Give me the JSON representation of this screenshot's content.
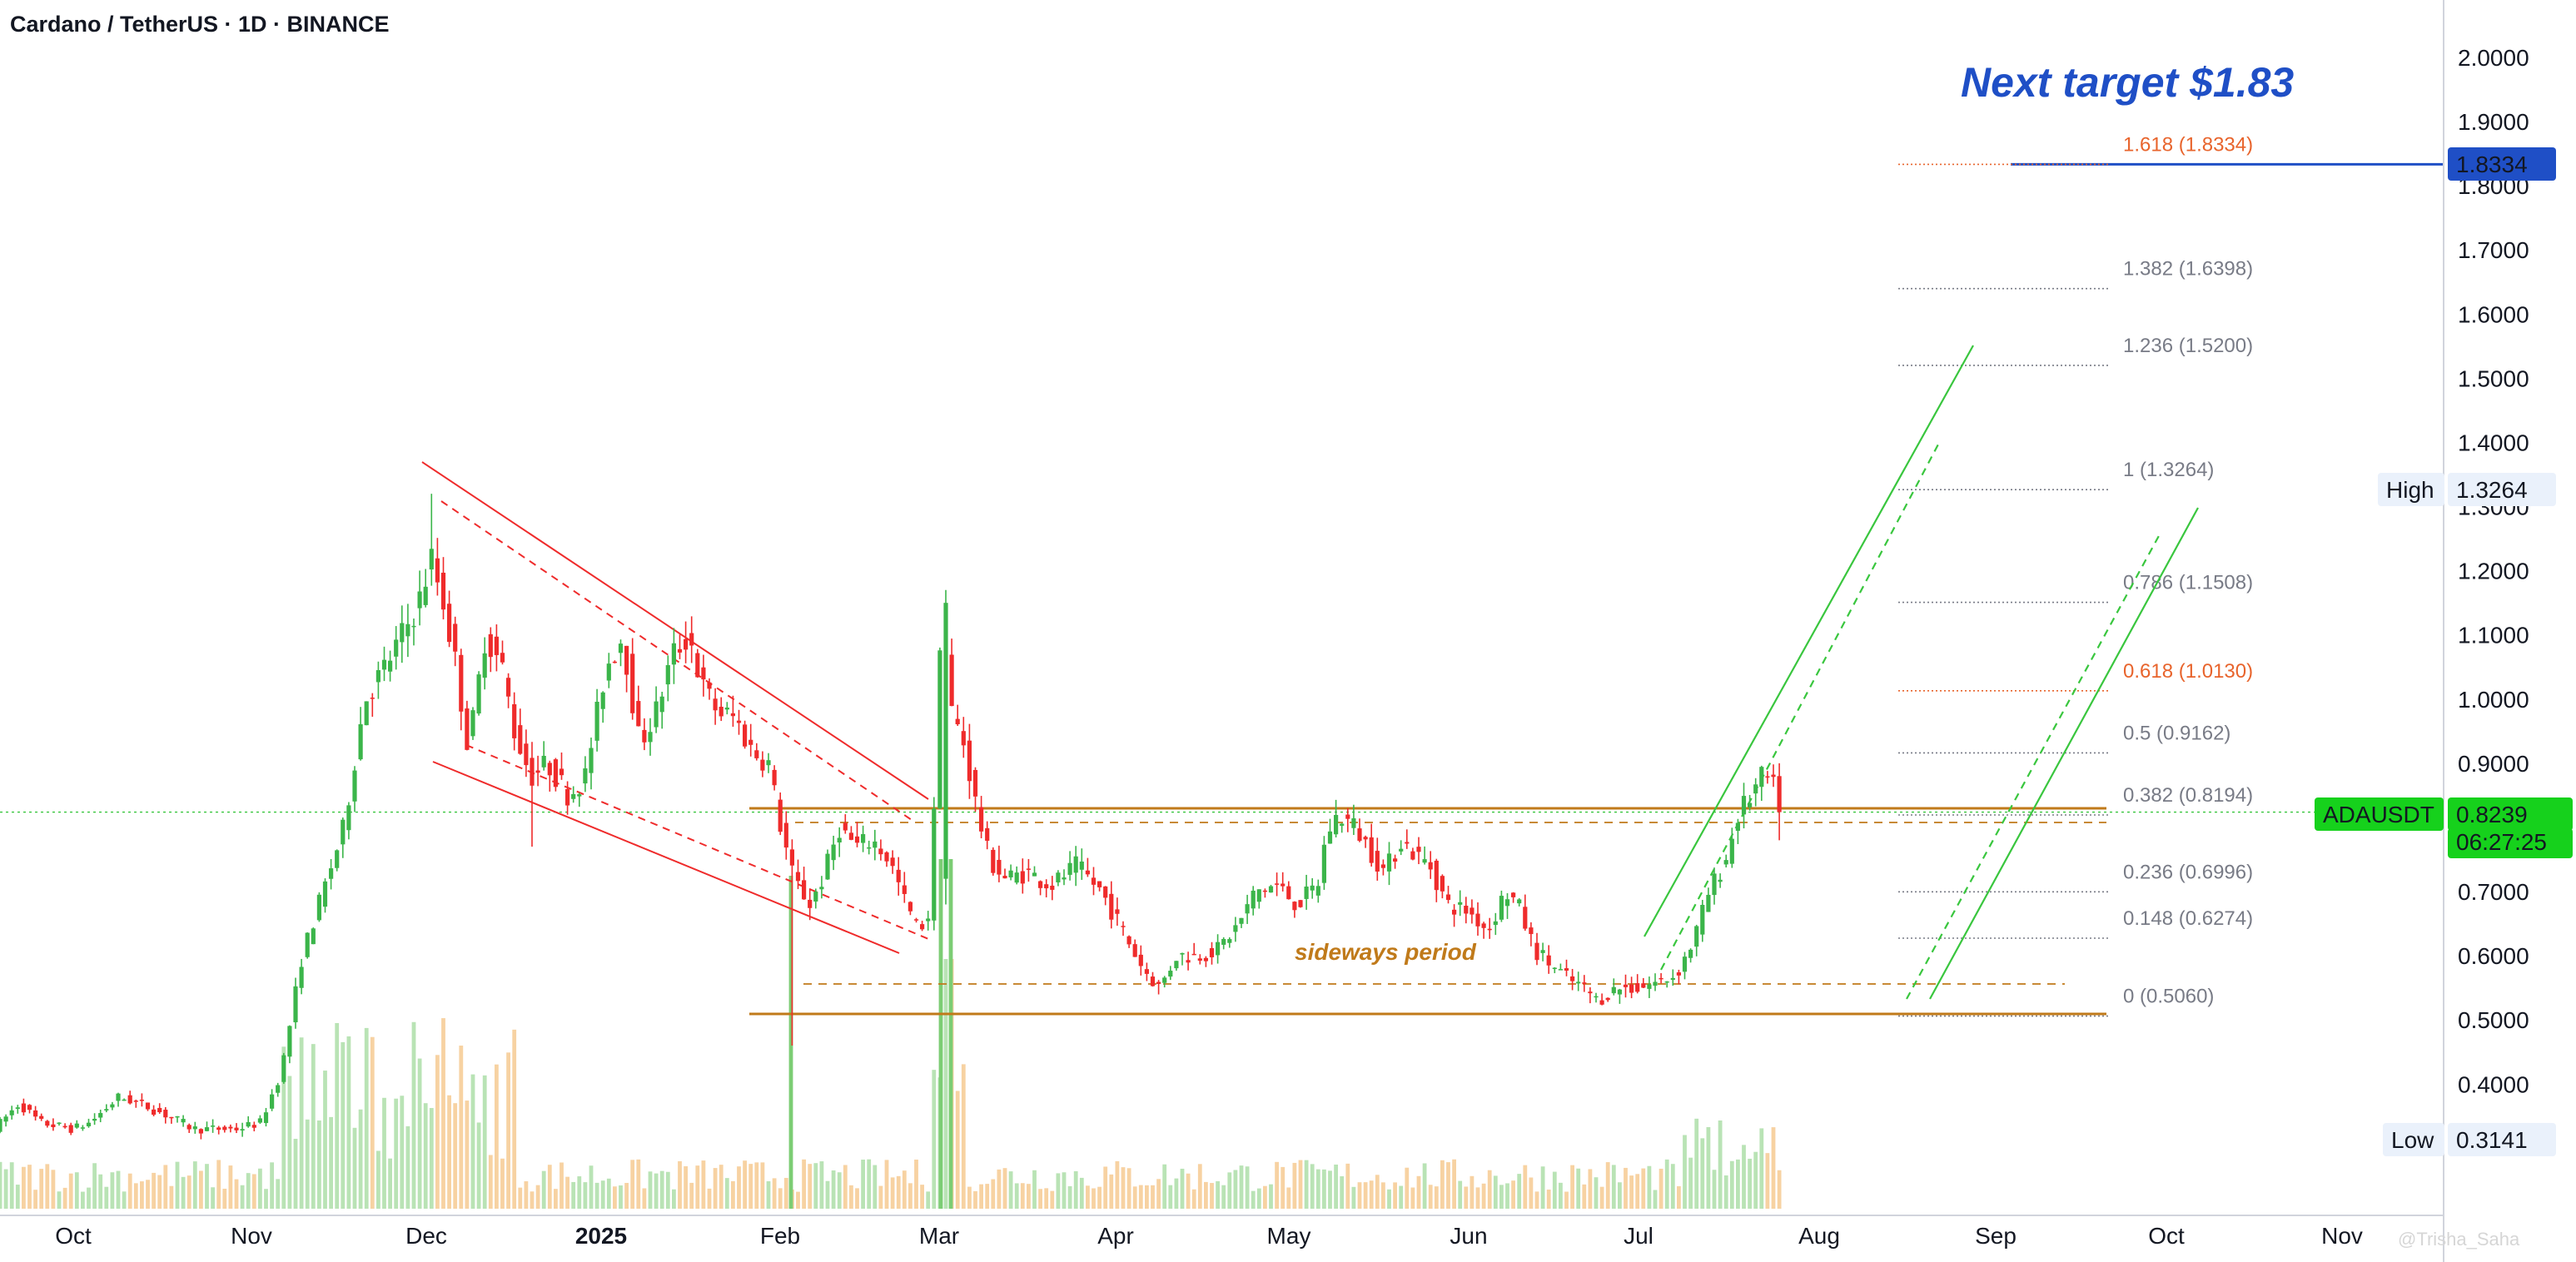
{
  "header": {
    "title": "Cardano / TetherUS · 1D · BINANCE"
  },
  "annotations": {
    "target_text": "Next target $1.83",
    "sideways_text": "sideways period",
    "watermark": "@Trisha_Saha"
  },
  "price_scale": {
    "ticks": [
      "2.0000",
      "1.9000",
      "1.8000",
      "1.7000",
      "1.6000",
      "1.5000",
      "1.4000",
      "1.3000",
      "1.2000",
      "1.1000",
      "1.0000",
      "0.9000",
      "0.7000",
      "0.6000",
      "0.5000",
      "0.4000"
    ],
    "target_badge": "1.8334",
    "high_label": "High",
    "high_value": "1.3264",
    "low_label": "Low",
    "low_value": "0.3141",
    "symbol_label": "ADAUSDT",
    "last_price": "0.8239",
    "countdown": "06:27:25"
  },
  "time_axis": [
    "Oct",
    "Nov",
    "Dec",
    "2025",
    "Feb",
    "Mar",
    "Apr",
    "May",
    "Jun",
    "Jul",
    "Aug",
    "Sep",
    "Oct",
    "Nov"
  ],
  "fib_levels": [
    {
      "label": "1.618 (1.8334)",
      "value": 1.8334,
      "color": "#e8642c"
    },
    {
      "label": "1.382 (1.6398)",
      "value": 1.6398,
      "color": "#787b86"
    },
    {
      "label": "1.236 (1.5200)",
      "value": 1.52,
      "color": "#787b86"
    },
    {
      "label": "1 (1.3264)",
      "value": 1.3264,
      "color": "#787b86"
    },
    {
      "label": "0.786 (1.1508)",
      "value": 1.1508,
      "color": "#787b86"
    },
    {
      "label": "0.618 (1.0130)",
      "value": 1.013,
      "color": "#e8642c"
    },
    {
      "label": "0.5 (0.9162)",
      "value": 0.9162,
      "color": "#787b86"
    },
    {
      "label": "0.382 (0.8194)",
      "value": 0.8194,
      "color": "#787b86"
    },
    {
      "label": "0.236 (0.6996)",
      "value": 0.6996,
      "color": "#787b86"
    },
    {
      "label": "0.148 (0.6274)",
      "value": 0.6274,
      "color": "#787b86"
    },
    {
      "label": "0 (0.5060)",
      "value": 0.506,
      "color": "#787b86"
    }
  ],
  "colors": {
    "up": "#26a69a",
    "green_candle": "#3bb54a",
    "down": "#ef2b2b",
    "orange": "#c07a1a",
    "blue": "#1f4fc6",
    "green_channel": "#39c63e"
  },
  "chart_data": {
    "type": "candlestick",
    "title": "Cardano / TetherUS · 1D · BINANCE",
    "y_range": [
      0.3,
      2.05
    ],
    "anchors": [
      {
        "t": 0,
        "p": 0.33
      },
      {
        "t": 30,
        "p": 0.37
      },
      {
        "t": 55,
        "p": 0.34
      },
      {
        "t": 95,
        "p": 0.33
      },
      {
        "t": 115,
        "p": 0.34
      },
      {
        "t": 150,
        "p": 0.38
      },
      {
        "t": 175,
        "p": 0.37
      },
      {
        "t": 210,
        "p": 0.35
      },
      {
        "t": 240,
        "p": 0.33
      },
      {
        "t": 290,
        "p": 0.33
      },
      {
        "t": 320,
        "p": 0.34
      },
      {
        "t": 345,
        "p": 0.42
      },
      {
        "t": 370,
        "p": 0.6
      },
      {
        "t": 395,
        "p": 0.7
      },
      {
        "t": 420,
        "p": 0.8
      },
      {
        "t": 445,
        "p": 1.0
      },
      {
        "t": 470,
        "p": 1.05
      },
      {
        "t": 490,
        "p": 1.1
      },
      {
        "t": 510,
        "p": 1.15
      },
      {
        "t": 525,
        "p": 1.22
      },
      {
        "t": 540,
        "p": 1.15
      },
      {
        "t": 555,
        "p": 1.05
      },
      {
        "t": 570,
        "p": 0.92
      },
      {
        "t": 590,
        "p": 1.1
      },
      {
        "t": 610,
        "p": 1.05
      },
      {
        "t": 625,
        "p": 0.95
      },
      {
        "t": 645,
        "p": 0.88
      },
      {
        "t": 665,
        "p": 0.9
      },
      {
        "t": 690,
        "p": 0.85
      },
      {
        "t": 710,
        "p": 0.88
      },
      {
        "t": 735,
        "p": 1.05
      },
      {
        "t": 755,
        "p": 1.1
      },
      {
        "t": 775,
        "p": 0.93
      },
      {
        "t": 795,
        "p": 0.98
      },
      {
        "t": 815,
        "p": 1.07
      },
      {
        "t": 835,
        "p": 1.1
      },
      {
        "t": 850,
        "p": 1.02
      },
      {
        "t": 870,
        "p": 0.98
      },
      {
        "t": 890,
        "p": 0.97
      },
      {
        "t": 910,
        "p": 0.92
      },
      {
        "t": 930,
        "p": 0.9
      },
      {
        "t": 945,
        "p": 0.8
      },
      {
        "t": 960,
        "p": 0.72
      },
      {
        "t": 980,
        "p": 0.68
      },
      {
        "t": 995,
        "p": 0.72
      },
      {
        "t": 1015,
        "p": 0.8
      },
      {
        "t": 1035,
        "p": 0.77
      },
      {
        "t": 1055,
        "p": 0.78
      },
      {
        "t": 1075,
        "p": 0.75
      },
      {
        "t": 1095,
        "p": 0.68
      },
      {
        "t": 1110,
        "p": 0.64
      },
      {
        "t": 1125,
        "p": 0.67
      },
      {
        "t": 1137,
        "p": 1.13
      },
      {
        "t": 1150,
        "p": 0.98
      },
      {
        "t": 1165,
        "p": 0.93
      },
      {
        "t": 1180,
        "p": 0.83
      },
      {
        "t": 1195,
        "p": 0.75
      },
      {
        "t": 1215,
        "p": 0.72
      },
      {
        "t": 1240,
        "p": 0.73
      },
      {
        "t": 1270,
        "p": 0.71
      },
      {
        "t": 1300,
        "p": 0.74
      },
      {
        "t": 1330,
        "p": 0.7
      },
      {
        "t": 1355,
        "p": 0.64
      },
      {
        "t": 1380,
        "p": 0.58
      },
      {
        "t": 1400,
        "p": 0.55
      },
      {
        "t": 1420,
        "p": 0.6
      },
      {
        "t": 1445,
        "p": 0.6
      },
      {
        "t": 1470,
        "p": 0.61
      },
      {
        "t": 1495,
        "p": 0.65
      },
      {
        "t": 1515,
        "p": 0.7
      },
      {
        "t": 1540,
        "p": 0.71
      },
      {
        "t": 1565,
        "p": 0.68
      },
      {
        "t": 1590,
        "p": 0.71
      },
      {
        "t": 1600,
        "p": 0.79
      },
      {
        "t": 1615,
        "p": 0.82
      },
      {
        "t": 1635,
        "p": 0.8
      },
      {
        "t": 1655,
        "p": 0.76
      },
      {
        "t": 1670,
        "p": 0.73
      },
      {
        "t": 1690,
        "p": 0.78
      },
      {
        "t": 1705,
        "p": 0.76
      },
      {
        "t": 1725,
        "p": 0.74
      },
      {
        "t": 1745,
        "p": 0.68
      },
      {
        "t": 1770,
        "p": 0.67
      },
      {
        "t": 1795,
        "p": 0.64
      },
      {
        "t": 1815,
        "p": 0.7
      },
      {
        "t": 1830,
        "p": 0.68
      },
      {
        "t": 1850,
        "p": 0.61
      },
      {
        "t": 1875,
        "p": 0.58
      },
      {
        "t": 1895,
        "p": 0.56
      },
      {
        "t": 1910,
        "p": 0.55
      },
      {
        "t": 1925,
        "p": 0.53
      },
      {
        "t": 1950,
        "p": 0.55
      },
      {
        "t": 1975,
        "p": 0.55
      },
      {
        "t": 2000,
        "p": 0.56
      },
      {
        "t": 2020,
        "p": 0.57
      },
      {
        "t": 2040,
        "p": 0.62
      },
      {
        "t": 2060,
        "p": 0.7
      },
      {
        "t": 2080,
        "p": 0.75
      },
      {
        "t": 2095,
        "p": 0.82
      },
      {
        "t": 2110,
        "p": 0.85
      },
      {
        "t": 2125,
        "p": 0.88
      },
      {
        "t": 2135,
        "p": 0.87
      },
      {
        "t": 2145,
        "p": 0.82
      }
    ]
  }
}
